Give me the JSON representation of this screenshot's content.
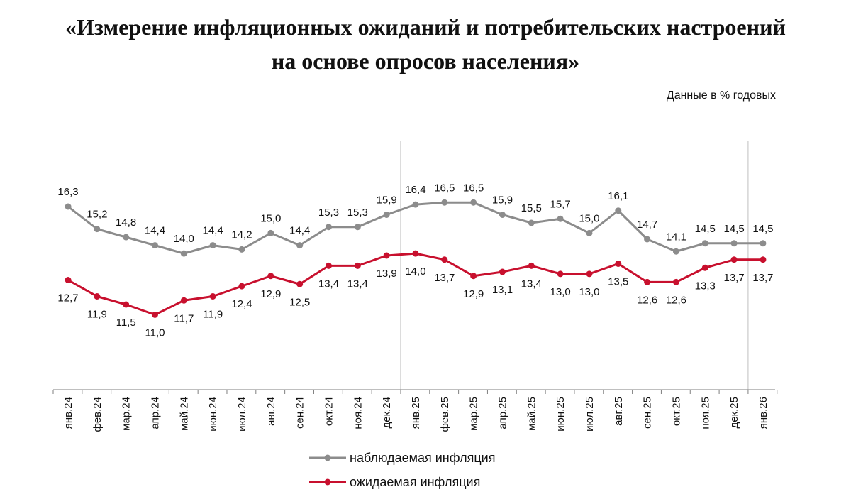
{
  "header": {
    "title_line1": "«Измерение инфляционных ожиданий и потребительских настроений",
    "title_line2": "на основе опросов населения»",
    "units": "Данные в % годовых"
  },
  "chart_data": {
    "type": "line",
    "title": "«Измерение инфляционных ожиданий и потребительских настроений на основе опросов населения»",
    "subtitle": "Данные в % годовых",
    "xlabel": "",
    "ylabel": "",
    "categories": [
      "янв.24",
      "фев.24",
      "мар.24",
      "апр.24",
      "май.24",
      "июн.24",
      "июл.24",
      "авг.24",
      "сен.24",
      "окт.24",
      "ноя.24",
      "дек.24",
      "янв.25",
      "фев.25",
      "мар.25",
      "апр.25",
      "май.25",
      "июн.25",
      "июл.25",
      "авг.25",
      "сен.25",
      "окт.25",
      "ноя.25",
      "дек.25",
      "янв.26"
    ],
    "series": [
      {
        "name": "наблюдаемая инфляция",
        "color": "#8c8c8c",
        "values": [
          16.3,
          15.2,
          14.8,
          14.4,
          14.0,
          14.4,
          14.2,
          15.0,
          14.4,
          15.3,
          15.3,
          15.9,
          16.4,
          16.5,
          16.5,
          15.9,
          15.5,
          15.7,
          15.0,
          16.1,
          14.7,
          14.1,
          14.5,
          14.5,
          14.5
        ],
        "labels": [
          "16,3",
          "15,2",
          "14,8",
          "14,4",
          "14,0",
          "14,4",
          "14,2",
          "15,0",
          "14,4",
          "15,3",
          "15,3",
          "15,9",
          "16,4",
          "16,5",
          "16,5",
          "15,9",
          "15,5",
          "15,7",
          "15,0",
          "16,1",
          "14,7",
          "14,1",
          "14,5",
          "14,5",
          "14,5"
        ],
        "label_position": "above"
      },
      {
        "name": "ожидаемая инфляция",
        "color": "#c8102e",
        "values": [
          12.7,
          11.9,
          11.5,
          11.0,
          11.7,
          11.9,
          12.4,
          12.9,
          12.5,
          13.4,
          13.4,
          13.9,
          14.0,
          13.7,
          12.9,
          13.1,
          13.4,
          13.0,
          13.0,
          13.5,
          12.6,
          12.6,
          13.3,
          13.7,
          13.7
        ],
        "labels": [
          "12,7",
          "11,9",
          "11,5",
          "11,0",
          "11,7",
          "11,9",
          "12,4",
          "12,9",
          "12,5",
          "13,4",
          "13,4",
          "13,9",
          "14,0",
          "13,7",
          "12,9",
          "13,1",
          "13,4",
          "13,0",
          "13,0",
          "13,5",
          "12,6",
          "12,6",
          "13,3",
          "13,7",
          "13,7"
        ],
        "label_position": "below"
      }
    ],
    "vertical_separators_after": [
      "дек.24",
      "дек.25"
    ],
    "separator_color": "#bfbfbf",
    "axis_color": "#7f7f7f",
    "grid": false,
    "legend_position": "bottom-center"
  }
}
